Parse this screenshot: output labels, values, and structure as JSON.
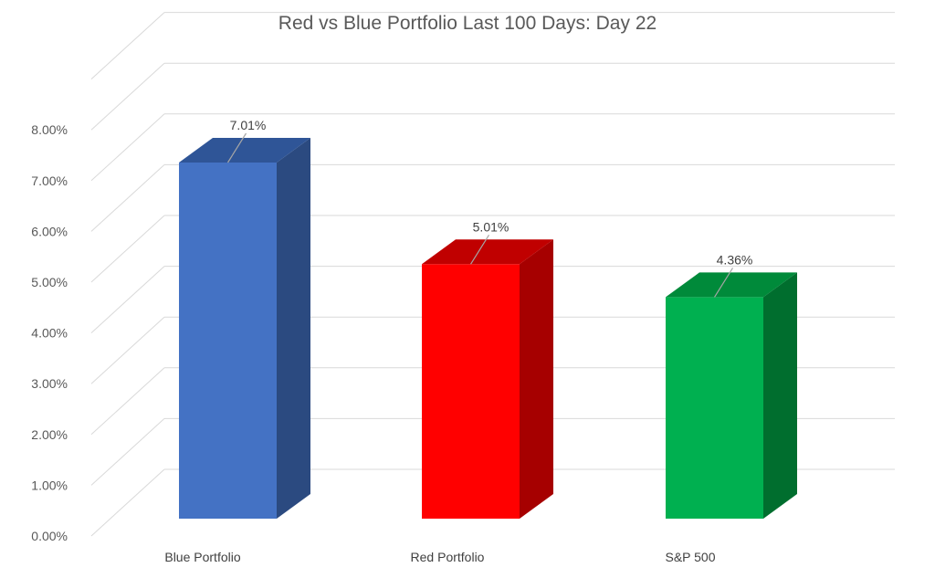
{
  "chart_data": {
    "type": "bar",
    "title": "Red vs Blue Portfolio Last 100 Days: Day 22",
    "categories": [
      "Blue Portfolio",
      "Red Portfolio",
      "S&P 500"
    ],
    "values": [
      7.01,
      5.01,
      4.36
    ],
    "data_labels": [
      "7.01%",
      "5.01%",
      "4.36%"
    ],
    "yticks": [
      "0.00%",
      "1.00%",
      "2.00%",
      "3.00%",
      "4.00%",
      "5.00%",
      "6.00%",
      "7.00%",
      "8.00%"
    ],
    "ylim": [
      0,
      8
    ],
    "xlabel": "",
    "ylabel": "",
    "grid": true,
    "three_d": true,
    "colors": {
      "front": [
        "#4472C4",
        "#FF0000",
        "#00B050"
      ],
      "side": [
        "#2B4A80",
        "#A60000",
        "#006E2E"
      ],
      "top": [
        "#2F5597",
        "#C00000",
        "#008A3A"
      ],
      "grid": "#D9D9D9",
      "leader": "#A6A6A6"
    }
  }
}
